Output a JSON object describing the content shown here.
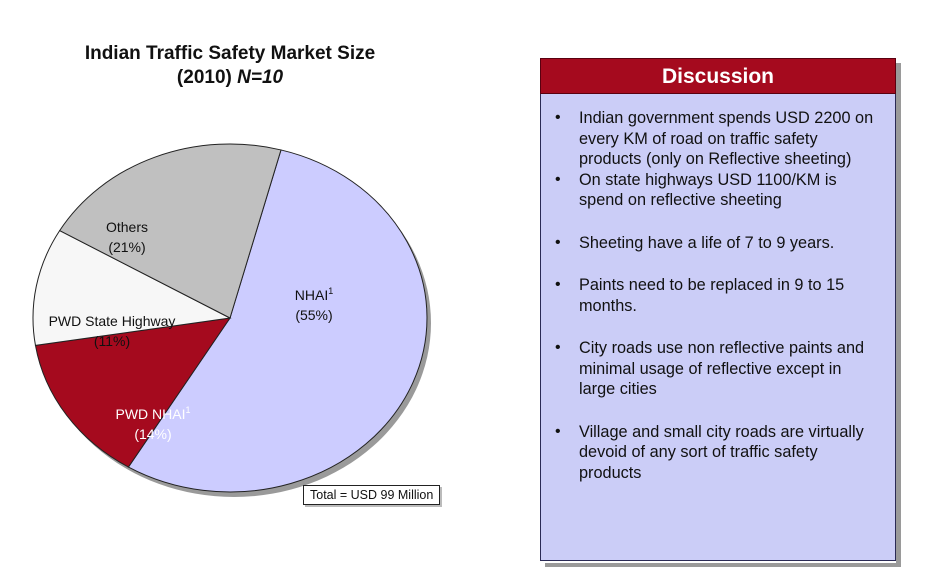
{
  "chart_data": {
    "type": "pie",
    "title": "Indian Traffic Safety Market Size",
    "subtitle": "(2010)",
    "sample_label": "N=10",
    "slices": [
      {
        "label": "NHAI",
        "superscript": "1",
        "percent_text": "(55%)",
        "value": 55,
        "color": "#ccccff"
      },
      {
        "label": "PWD NHAI",
        "superscript": "1",
        "percent_text": "(14%)",
        "value": 14,
        "color": "#a50a1e"
      },
      {
        "label": "PWD State Highway",
        "superscript": "",
        "percent_text": "(11%)",
        "value": 11,
        "color": "#f7f7f7"
      },
      {
        "label": "Others",
        "superscript": "",
        "percent_text": "(21%)",
        "value": 21,
        "color": "#c0c0c0"
      }
    ],
    "total_label": "Total = USD 99 Million"
  },
  "discussion": {
    "title": "Discussion",
    "bullets": [
      "Indian government  spends USD 2200 on every KM of road on traffic safety products (only on Reflective sheeting)",
      "On state highways USD 1100/KM is spend on reflective sheeting",
      "Sheeting have a life of 7 to 9 years.",
      "Paints need to be replaced in 9 to 15 months.",
      "City roads use non reflective paints and minimal usage of reflective except in large cities",
      "Village and small city roads are virtually devoid of any sort of traffic safety products"
    ],
    "bullet_symbol": "•"
  }
}
